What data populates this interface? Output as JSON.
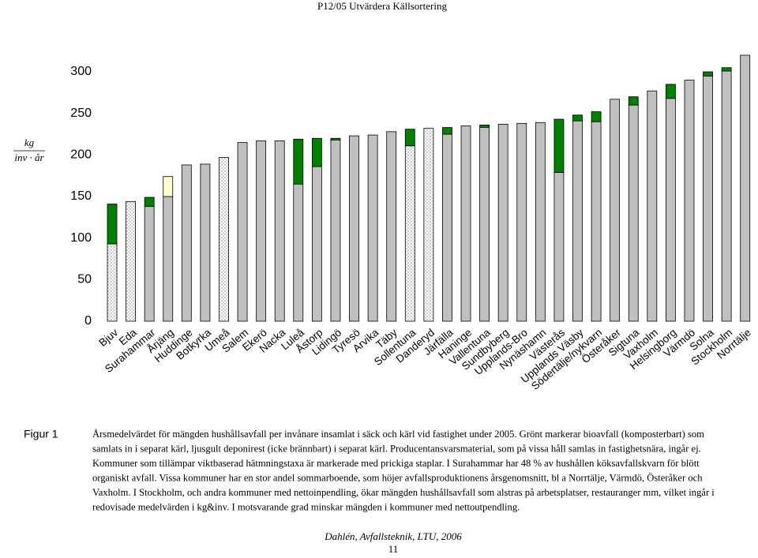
{
  "header": {
    "title": "P12/05 Utvärdera Källsortering"
  },
  "chart_data": {
    "type": "bar",
    "stacked": true,
    "y_label": {
      "numerator": "kg",
      "denominator": "inv · år"
    },
    "categories": [
      "Bjuv",
      "Eda",
      "Surahammar",
      "Årjäng",
      "Huddinge",
      "Botkyrka",
      "Umeå",
      "Salem",
      "Ekerö",
      "Nacka",
      "Luleå",
      "Åstorp",
      "Lidingö",
      "Tyresö",
      "Arvika",
      "Täby",
      "Sollentuna",
      "Danderyd",
      "Järfälla",
      "Haninge",
      "Vallentuna",
      "Sundbyberg",
      "Upplands-Bro",
      "Nynäshamn",
      "Västerås",
      "Upplands Väsby",
      "Södertälje/nykvarn",
      "Österåker",
      "Sigtuna",
      "Vaxholm",
      "Helsingborg",
      "Värmdö",
      "Solna",
      "Stockholm",
      "Norrtälje"
    ],
    "series": [
      {
        "color": "#c0c0c0",
        "dotted": [
          true,
          true,
          false,
          false,
          false,
          false,
          true,
          false,
          false,
          false,
          false,
          false,
          false,
          false,
          false,
          false,
          true,
          true,
          false,
          false,
          false,
          false,
          false,
          false,
          false,
          false,
          false,
          false,
          false,
          false,
          false,
          false,
          false,
          false,
          false
        ],
        "values": [
          93,
          144,
          138,
          150,
          188,
          189,
          197,
          215,
          217,
          217,
          165,
          186,
          218,
          223,
          224,
          228,
          211,
          232,
          225,
          235,
          233,
          237,
          238,
          239,
          179,
          241,
          240,
          267,
          260,
          277,
          268,
          290,
          295,
          301,
          320
        ]
      },
      {
        "color": "#008000",
        "values": [
          48,
          null,
          11,
          null,
          null,
          null,
          null,
          null,
          null,
          null,
          54,
          34,
          2,
          null,
          null,
          null,
          20,
          null,
          8,
          null,
          3,
          null,
          null,
          null,
          64,
          7,
          12,
          null,
          10,
          null,
          17,
          null,
          5,
          4,
          null
        ]
      },
      {
        "color": "#ffffcc",
        "values": [
          null,
          null,
          null,
          24,
          null,
          null,
          null,
          null,
          null,
          null,
          null,
          null,
          null,
          null,
          null,
          null,
          null,
          null,
          null,
          null,
          null,
          null,
          null,
          null,
          null,
          null,
          null,
          null,
          null,
          null,
          null,
          null,
          null,
          null,
          null
        ]
      }
    ],
    "ylim": [
      0,
      320
    ],
    "yticks": [
      0,
      50,
      100,
      150,
      200,
      250,
      300
    ],
    "grid": false
  },
  "caption": {
    "label": "Figur 1",
    "lines": [
      "Årsmedelvärdet för mängden hushållsavfall per invånare insamlat i säck och kärl vid fastighet under 2005. Grönt markerar bioavfall (komposterbart) som",
      "samlats in i separat kärl, ljusgult deponirest (icke brännbart) i separat kärl. Producentansvarsmaterial, som på vissa håll samlas in fastighetsnära, ingår ej.",
      "Kommuner som tillämpar viktbaserad hätmningstaxa är markerade med prickiga staplar. I Surahammar har 48 % av hushållen köksavfallskvarn för blött",
      "organiskt avfall. Vissa kommuner har en stor andel sommarboende, som höjer avfallsproduktionens årsgenomsnitt, bl a Norrtälje, Värmdö, Österåker och",
      "Vaxholm. I Stockholm, och andra kommuner med nettoinpendling, ökar mängden hushållsavfall som alstras på arbetsplatser, restauranger mm, vilket ingår i",
      "redovisade medelvärden i kg&inv. I motsvarande grad minskar mängden i kommuner med nettoutpendling."
    ]
  },
  "footer": {
    "author": "Dahlén, Avfallsteknik, LTU, 2006",
    "page": "11"
  }
}
